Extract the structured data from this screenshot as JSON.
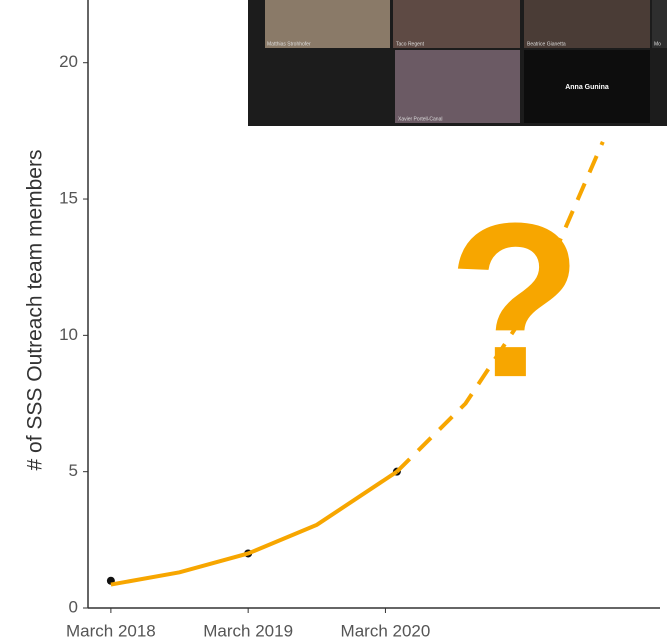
{
  "chart_data": {
    "type": "line",
    "y_label": "# of SSS Outreach team members",
    "annotation": "?",
    "annotation_color": "#f7a600",
    "xlim": [
      0,
      50
    ],
    "xticks": [
      {
        "value": 2,
        "label": "March 2018"
      },
      {
        "value": 14,
        "label": "March 2019"
      },
      {
        "value": 26,
        "label": "March 2020"
      }
    ],
    "ylim": [
      0,
      22.3
    ],
    "yticks": [
      0,
      5,
      10,
      15,
      20
    ],
    "grid": false,
    "series": [
      {
        "kind": "points",
        "color": "#111111",
        "x": [
          2,
          14,
          27
        ],
        "values": [
          1,
          2,
          5
        ]
      },
      {
        "kind": "solid",
        "color": "#f7a600",
        "x": [
          2,
          8,
          14,
          20,
          27
        ],
        "values": [
          0.86,
          1.31,
          2,
          3.05,
          5
        ]
      },
      {
        "kind": "dashed",
        "color": "#f7a600",
        "x": [
          27,
          33,
          39,
          45
        ],
        "values": [
          5,
          7.5,
          11.3,
          17.1
        ]
      }
    ]
  },
  "overlay": {
    "participants": [
      "Matthias Strohhofer",
      "Taco Regent",
      "Beatrice Gianetta",
      "Mo",
      "Xavier Portell-Canal",
      "Anna Gunina"
    ]
  }
}
